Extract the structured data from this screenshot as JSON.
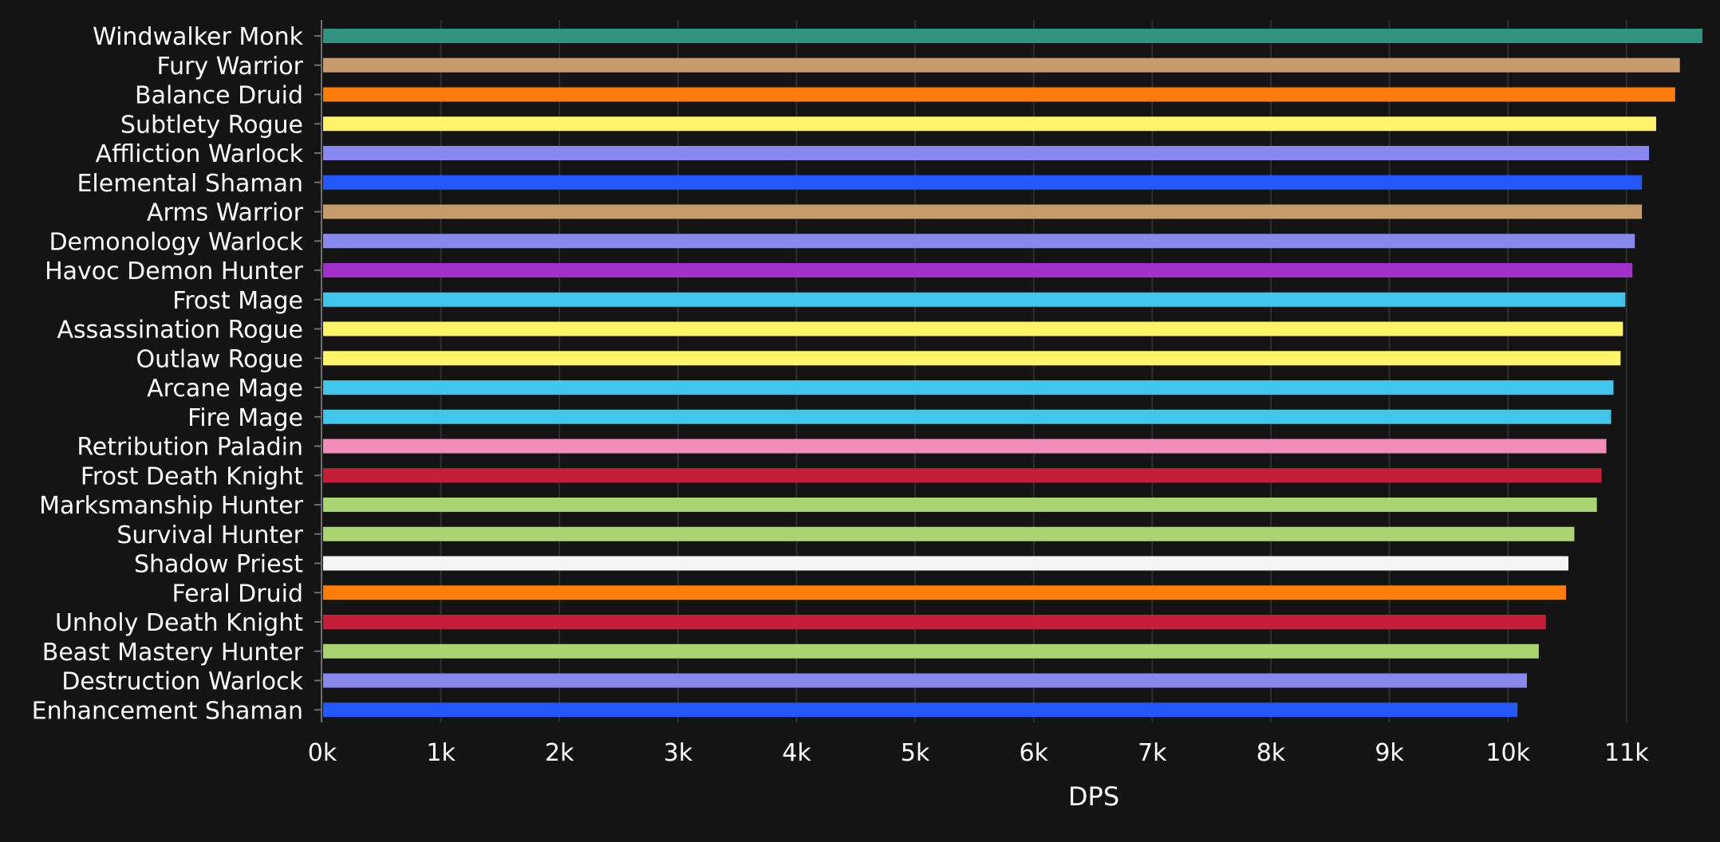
{
  "chart_data": {
    "type": "bar",
    "orientation": "horizontal",
    "title": "",
    "xlabel": "DPS",
    "ylabel": "",
    "xlim": [
      0,
      11700
    ],
    "x_ticks": [
      {
        "value": 0,
        "label": "0k"
      },
      {
        "value": 1000,
        "label": "1k"
      },
      {
        "value": 2000,
        "label": "2k"
      },
      {
        "value": 3000,
        "label": "3k"
      },
      {
        "value": 4000,
        "label": "4k"
      },
      {
        "value": 5000,
        "label": "5k"
      },
      {
        "value": 6000,
        "label": "6k"
      },
      {
        "value": 7000,
        "label": "7k"
      },
      {
        "value": 8000,
        "label": "8k"
      },
      {
        "value": 9000,
        "label": "9k"
      },
      {
        "value": 10000,
        "label": "10k"
      },
      {
        "value": 11000,
        "label": "11k"
      }
    ],
    "grid": "vertical",
    "legend": "none",
    "categories": [
      "Windwalker Monk",
      "Fury Warrior",
      "Balance Druid",
      "Subtlety Rogue",
      "Affliction Warlock",
      "Elemental Shaman",
      "Arms Warrior",
      "Demonology Warlock",
      "Havoc Demon Hunter",
      "Frost Mage",
      "Assassination Rogue",
      "Outlaw Rogue",
      "Arcane Mage",
      "Fire Mage",
      "Retribution Paladin",
      "Frost Death Knight",
      "Marksmanship Hunter",
      "Survival Hunter",
      "Shadow Priest",
      "Feral Druid",
      "Unholy Death Knight",
      "Beast Mastery Hunter",
      "Destruction Warlock",
      "Enhancement Shaman"
    ],
    "values": [
      11640,
      11450,
      11410,
      11250,
      11190,
      11130,
      11130,
      11070,
      11050,
      10990,
      10970,
      10950,
      10890,
      10870,
      10830,
      10790,
      10750,
      10560,
      10510,
      10490,
      10320,
      10260,
      10160,
      10080
    ],
    "colors": [
      "#33937F",
      "#C69B6D",
      "#FF7C0A",
      "#FFF468",
      "#8788EE",
      "#0070DD",
      "#C69B6D",
      "#8788EE",
      "#A330C9",
      "#3FC7EB",
      "#FFF468",
      "#FFF468",
      "#3FC7EB",
      "#3FC7EB",
      "#F48CBA",
      "#C41E3A",
      "#AAD372",
      "#AAD372",
      "#F5F5F5",
      "#FF7C0A",
      "#C41E3A",
      "#AAD372",
      "#8788EE",
      "#0070DD"
    ],
    "colors_note_display": {
      "elemental_blue": "#2458FF"
    }
  },
  "style": {
    "background": "#141414",
    "text_color": "#ffffff",
    "grid_color": "#2e2e2e",
    "axis_color": "#6e6e6e"
  }
}
